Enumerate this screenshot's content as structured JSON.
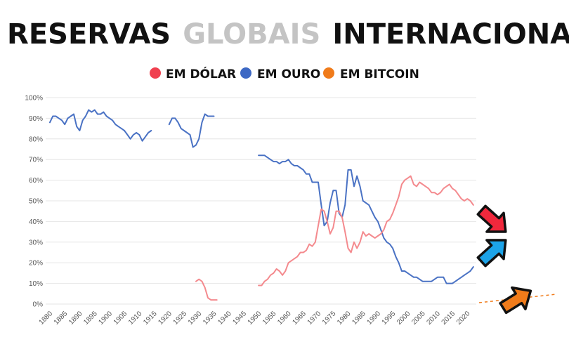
{
  "chart_data": {
    "type": "line",
    "title": {
      "parts": [
        {
          "text": "RESERVAS",
          "color": "#111111"
        },
        {
          "text": "GLOBAIS",
          "color": "#c4c4c4"
        },
        {
          "text": "INTERNACIONAIS",
          "color": "#111111"
        }
      ]
    },
    "xlabel": "",
    "ylabel": "",
    "xlim": [
      1880,
      2023
    ],
    "ylim": [
      0,
      100
    ],
    "y_ticks": [
      "0%",
      "10%",
      "20%",
      "30%",
      "40%",
      "50%",
      "60%",
      "70%",
      "80%",
      "90%",
      "100%"
    ],
    "x_ticks": [
      "1880",
      "1885",
      "1890",
      "1895",
      "1900",
      "1905",
      "1910",
      "1915",
      "1920",
      "1925",
      "1930",
      "1935",
      "1940",
      "1945",
      "1950",
      "1955",
      "1960",
      "1965",
      "1970",
      "1975",
      "1980",
      "1985",
      "1990",
      "1995",
      "2000",
      "2005",
      "2010",
      "2015",
      "2020"
    ],
    "legend": [
      {
        "label": "EM DÓLAR",
        "color": "#f0404f"
      },
      {
        "label": "EM OURO",
        "color": "#3d68c4"
      },
      {
        "label": "EM BITCOIN",
        "color": "#f07b1a"
      }
    ],
    "series": [
      {
        "name": "EM OURO",
        "color": "#4a72c4",
        "segments": [
          [
            [
              1880,
              88
            ],
            [
              1881,
              91
            ],
            [
              1882,
              91
            ],
            [
              1883,
              90
            ],
            [
              1884,
              89
            ],
            [
              1885,
              87
            ],
            [
              1886,
              90
            ],
            [
              1887,
              91
            ],
            [
              1888,
              92
            ],
            [
              1889,
              86
            ],
            [
              1890,
              84
            ],
            [
              1891,
              89
            ],
            [
              1892,
              91
            ],
            [
              1893,
              94
            ],
            [
              1894,
              93
            ],
            [
              1895,
              94
            ],
            [
              1896,
              92
            ],
            [
              1897,
              92
            ],
            [
              1898,
              93
            ],
            [
              1899,
              91
            ],
            [
              1900,
              90
            ],
            [
              1901,
              89
            ],
            [
              1902,
              87
            ],
            [
              1903,
              86
            ],
            [
              1904,
              85
            ],
            [
              1905,
              84
            ],
            [
              1906,
              82
            ],
            [
              1907,
              80
            ],
            [
              1908,
              82
            ],
            [
              1909,
              83
            ],
            [
              1910,
              82
            ],
            [
              1911,
              79
            ],
            [
              1912,
              81
            ],
            [
              1913,
              83
            ],
            [
              1914,
              84
            ]
          ],
          [
            [
              1920,
              87
            ],
            [
              1921,
              90
            ],
            [
              1922,
              90
            ],
            [
              1923,
              88
            ],
            [
              1924,
              85
            ],
            [
              1925,
              84
            ],
            [
              1926,
              83
            ],
            [
              1927,
              82
            ],
            [
              1928,
              76
            ],
            [
              1929,
              77
            ],
            [
              1930,
              80
            ],
            [
              1931,
              88
            ],
            [
              1932,
              92
            ],
            [
              1933,
              91
            ],
            [
              1934,
              91
            ],
            [
              1935,
              91
            ]
          ],
          [
            [
              1950,
              72
            ],
            [
              1951,
              72
            ],
            [
              1952,
              72
            ],
            [
              1953,
              71
            ],
            [
              1954,
              70
            ],
            [
              1955,
              69
            ],
            [
              1956,
              69
            ],
            [
              1957,
              68
            ],
            [
              1958,
              69
            ],
            [
              1959,
              69
            ],
            [
              1960,
              70
            ],
            [
              1961,
              68
            ],
            [
              1962,
              67
            ],
            [
              1963,
              67
            ],
            [
              1964,
              66
            ],
            [
              1965,
              65
            ],
            [
              1966,
              63
            ],
            [
              1967,
              63
            ],
            [
              1968,
              59
            ],
            [
              1969,
              59
            ],
            [
              1970,
              59
            ],
            [
              1971,
              48
            ],
            [
              1972,
              38
            ],
            [
              1973,
              40
            ],
            [
              1974,
              49
            ],
            [
              1975,
              55
            ],
            [
              1976,
              55
            ],
            [
              1977,
              44
            ],
            [
              1978,
              42
            ],
            [
              1979,
              48
            ],
            [
              1980,
              65
            ],
            [
              1981,
              65
            ],
            [
              1982,
              57
            ],
            [
              1983,
              62
            ],
            [
              1984,
              57
            ],
            [
              1985,
              50
            ],
            [
              1986,
              49
            ],
            [
              1987,
              48
            ],
            [
              1988,
              45
            ],
            [
              1989,
              42
            ],
            [
              1990,
              40
            ],
            [
              1991,
              36
            ],
            [
              1992,
              32
            ],
            [
              1993,
              30
            ],
            [
              1994,
              29
            ],
            [
              1995,
              27
            ],
            [
              1996,
              23
            ],
            [
              1997,
              20
            ],
            [
              1998,
              16
            ],
            [
              1999,
              16
            ],
            [
              2000,
              15
            ],
            [
              2001,
              14
            ],
            [
              2002,
              13
            ],
            [
              2003,
              13
            ],
            [
              2004,
              12
            ],
            [
              2005,
              11
            ],
            [
              2006,
              11
            ],
            [
              2007,
              11
            ],
            [
              2008,
              11
            ],
            [
              2009,
              12
            ],
            [
              2010,
              13
            ],
            [
              2011,
              13
            ],
            [
              2012,
              13
            ],
            [
              2013,
              10
            ],
            [
              2014,
              10
            ],
            [
              2015,
              10
            ],
            [
              2016,
              11
            ],
            [
              2017,
              12
            ],
            [
              2018,
              13
            ],
            [
              2019,
              14
            ],
            [
              2020,
              15
            ],
            [
              2021,
              16
            ],
            [
              2022,
              18
            ]
          ]
        ]
      },
      {
        "name": "EM DÓLAR",
        "color": "#f48a8e",
        "segments": [
          [
            [
              1929,
              11
            ],
            [
              1930,
              12
            ],
            [
              1931,
              11
            ],
            [
              1932,
              8
            ],
            [
              1933,
              3
            ],
            [
              1934,
              2
            ],
            [
              1935,
              2
            ],
            [
              1936,
              2
            ]
          ],
          [
            [
              1950,
              9
            ],
            [
              1951,
              9
            ],
            [
              1952,
              11
            ],
            [
              1953,
              12
            ],
            [
              1954,
              14
            ],
            [
              1955,
              15
            ],
            [
              1956,
              17
            ],
            [
              1957,
              16
            ],
            [
              1958,
              14
            ],
            [
              1959,
              16
            ],
            [
              1960,
              20
            ],
            [
              1961,
              21
            ],
            [
              1962,
              22
            ],
            [
              1963,
              23
            ],
            [
              1964,
              25
            ],
            [
              1965,
              25
            ],
            [
              1966,
              26
            ],
            [
              1967,
              29
            ],
            [
              1968,
              28
            ],
            [
              1969,
              30
            ],
            [
              1970,
              38
            ],
            [
              1971,
              46
            ],
            [
              1972,
              45
            ],
            [
              1973,
              40
            ],
            [
              1974,
              34
            ],
            [
              1975,
              37
            ],
            [
              1976,
              45
            ],
            [
              1977,
              45
            ],
            [
              1978,
              42
            ],
            [
              1979,
              35
            ],
            [
              1980,
              27
            ],
            [
              1981,
              25
            ],
            [
              1982,
              30
            ],
            [
              1983,
              27
            ],
            [
              1984,
              30
            ],
            [
              1985,
              35
            ],
            [
              1986,
              33
            ],
            [
              1987,
              34
            ],
            [
              1988,
              33
            ],
            [
              1989,
              32
            ],
            [
              1990,
              33
            ],
            [
              1991,
              34
            ],
            [
              1992,
              36
            ],
            [
              1993,
              40
            ],
            [
              1994,
              41
            ],
            [
              1995,
              44
            ],
            [
              1996,
              48
            ],
            [
              1997,
              52
            ],
            [
              1998,
              58
            ],
            [
              1999,
              60
            ],
            [
              2000,
              61
            ],
            [
              2001,
              62
            ],
            [
              2002,
              58
            ],
            [
              2003,
              57
            ],
            [
              2004,
              59
            ],
            [
              2005,
              58
            ],
            [
              2006,
              57
            ],
            [
              2007,
              56
            ],
            [
              2008,
              54
            ],
            [
              2009,
              54
            ],
            [
              2010,
              53
            ],
            [
              2011,
              54
            ],
            [
              2012,
              56
            ],
            [
              2013,
              57
            ],
            [
              2014,
              58
            ],
            [
              2015,
              56
            ],
            [
              2016,
              55
            ],
            [
              2017,
              53
            ],
            [
              2018,
              51
            ],
            [
              2019,
              50
            ],
            [
              2020,
              51
            ],
            [
              2021,
              50
            ],
            [
              2022,
              48
            ]
          ]
        ]
      }
    ]
  }
}
